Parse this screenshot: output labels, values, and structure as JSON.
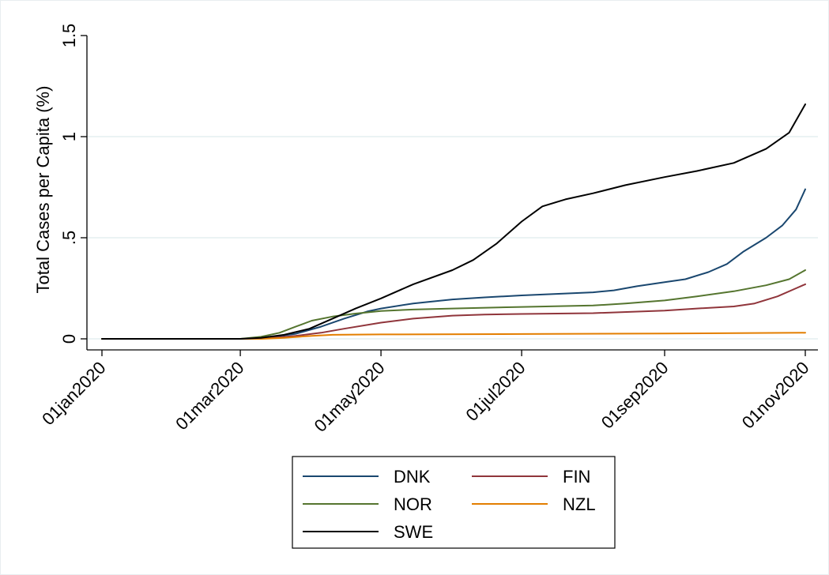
{
  "chart_data": {
    "type": "line",
    "title": "",
    "xlabel": "",
    "ylabel": "Total Cases per Capita (%)",
    "x_type": "date",
    "xlim": [
      "2020-01-01",
      "2020-11-01"
    ],
    "ylim": [
      0,
      1.5
    ],
    "x_ticks": [
      {
        "value": "2020-01-01",
        "label": "01jan2020"
      },
      {
        "value": "2020-03-01",
        "label": "01mar2020"
      },
      {
        "value": "2020-05-01",
        "label": "01may2020"
      },
      {
        "value": "2020-07-01",
        "label": "01jul2020"
      },
      {
        "value": "2020-09-01",
        "label": "01sep2020"
      },
      {
        "value": "2020-11-01",
        "label": "01nov2020"
      }
    ],
    "y_ticks": [
      {
        "value": 0,
        "label": "0"
      },
      {
        "value": 0.5,
        "label": ".5"
      },
      {
        "value": 1,
        "label": "1"
      },
      {
        "value": 1.5,
        "label": "1.5"
      }
    ],
    "grid": true,
    "legend_position": "bottom",
    "series": [
      {
        "name": "DNK",
        "color": "#1a476f",
        "points": [
          [
            "2020-01-01",
            0
          ],
          [
            "2020-03-01",
            0
          ],
          [
            "2020-03-08",
            0.001
          ],
          [
            "2020-03-15",
            0.01
          ],
          [
            "2020-03-25",
            0.025
          ],
          [
            "2020-04-05",
            0.06
          ],
          [
            "2020-04-15",
            0.1
          ],
          [
            "2020-04-25",
            0.135
          ],
          [
            "2020-05-01",
            0.15
          ],
          [
            "2020-05-15",
            0.175
          ],
          [
            "2020-06-01",
            0.195
          ],
          [
            "2020-06-15",
            0.205
          ],
          [
            "2020-07-01",
            0.215
          ],
          [
            "2020-07-15",
            0.222
          ],
          [
            "2020-08-01",
            0.23
          ],
          [
            "2020-08-10",
            0.24
          ],
          [
            "2020-08-20",
            0.26
          ],
          [
            "2020-09-01",
            0.28
          ],
          [
            "2020-09-10",
            0.295
          ],
          [
            "2020-09-20",
            0.33
          ],
          [
            "2020-09-28",
            0.37
          ],
          [
            "2020-10-05",
            0.43
          ],
          [
            "2020-10-15",
            0.5
          ],
          [
            "2020-10-22",
            0.56
          ],
          [
            "2020-10-28",
            0.64
          ],
          [
            "2020-11-01",
            0.74
          ]
        ]
      },
      {
        "name": "FIN",
        "color": "#90353b",
        "points": [
          [
            "2020-01-01",
            0
          ],
          [
            "2020-03-05",
            0
          ],
          [
            "2020-03-15",
            0.005
          ],
          [
            "2020-03-25",
            0.015
          ],
          [
            "2020-04-05",
            0.03
          ],
          [
            "2020-04-15",
            0.05
          ],
          [
            "2020-05-01",
            0.08
          ],
          [
            "2020-05-15",
            0.1
          ],
          [
            "2020-06-01",
            0.115
          ],
          [
            "2020-06-15",
            0.12
          ],
          [
            "2020-07-01",
            0.123
          ],
          [
            "2020-08-01",
            0.127
          ],
          [
            "2020-09-01",
            0.14
          ],
          [
            "2020-09-15",
            0.15
          ],
          [
            "2020-10-01",
            0.16
          ],
          [
            "2020-10-10",
            0.175
          ],
          [
            "2020-10-20",
            0.21
          ],
          [
            "2020-10-28",
            0.25
          ],
          [
            "2020-11-01",
            0.27
          ]
        ]
      },
      {
        "name": "NOR",
        "color": "#55752f",
        "points": [
          [
            "2020-01-01",
            0
          ],
          [
            "2020-03-01",
            0
          ],
          [
            "2020-03-10",
            0.01
          ],
          [
            "2020-03-18",
            0.03
          ],
          [
            "2020-03-25",
            0.06
          ],
          [
            "2020-04-01",
            0.09
          ],
          [
            "2020-04-10",
            0.11
          ],
          [
            "2020-04-20",
            0.125
          ],
          [
            "2020-05-01",
            0.138
          ],
          [
            "2020-05-15",
            0.145
          ],
          [
            "2020-06-01",
            0.15
          ],
          [
            "2020-07-01",
            0.158
          ],
          [
            "2020-08-01",
            0.165
          ],
          [
            "2020-08-15",
            0.175
          ],
          [
            "2020-09-01",
            0.19
          ],
          [
            "2020-09-15",
            0.21
          ],
          [
            "2020-10-01",
            0.235
          ],
          [
            "2020-10-15",
            0.265
          ],
          [
            "2020-10-25",
            0.295
          ],
          [
            "2020-11-01",
            0.34
          ]
        ]
      },
      {
        "name": "NZL",
        "color": "#e37e00",
        "points": [
          [
            "2020-01-01",
            0
          ],
          [
            "2020-03-10",
            0
          ],
          [
            "2020-03-20",
            0.005
          ],
          [
            "2020-04-01",
            0.015
          ],
          [
            "2020-04-10",
            0.02
          ],
          [
            "2020-05-01",
            0.022
          ],
          [
            "2020-07-01",
            0.024
          ],
          [
            "2020-09-01",
            0.026
          ],
          [
            "2020-11-01",
            0.03
          ]
        ]
      },
      {
        "name": "SWE",
        "color": "#000000",
        "points": [
          [
            "2020-01-01",
            0
          ],
          [
            "2020-03-01",
            0
          ],
          [
            "2020-03-10",
            0.005
          ],
          [
            "2020-03-20",
            0.02
          ],
          [
            "2020-03-31",
            0.05
          ],
          [
            "2020-04-10",
            0.1
          ],
          [
            "2020-04-20",
            0.15
          ],
          [
            "2020-05-01",
            0.2
          ],
          [
            "2020-05-15",
            0.27
          ],
          [
            "2020-06-01",
            0.34
          ],
          [
            "2020-06-10",
            0.39
          ],
          [
            "2020-06-20",
            0.47
          ],
          [
            "2020-07-01",
            0.58
          ],
          [
            "2020-07-10",
            0.655
          ],
          [
            "2020-07-20",
            0.69
          ],
          [
            "2020-08-01",
            0.72
          ],
          [
            "2020-08-15",
            0.76
          ],
          [
            "2020-09-01",
            0.8
          ],
          [
            "2020-09-15",
            0.83
          ],
          [
            "2020-10-01",
            0.87
          ],
          [
            "2020-10-15",
            0.94
          ],
          [
            "2020-10-25",
            1.02
          ],
          [
            "2020-11-01",
            1.16
          ]
        ]
      }
    ]
  }
}
